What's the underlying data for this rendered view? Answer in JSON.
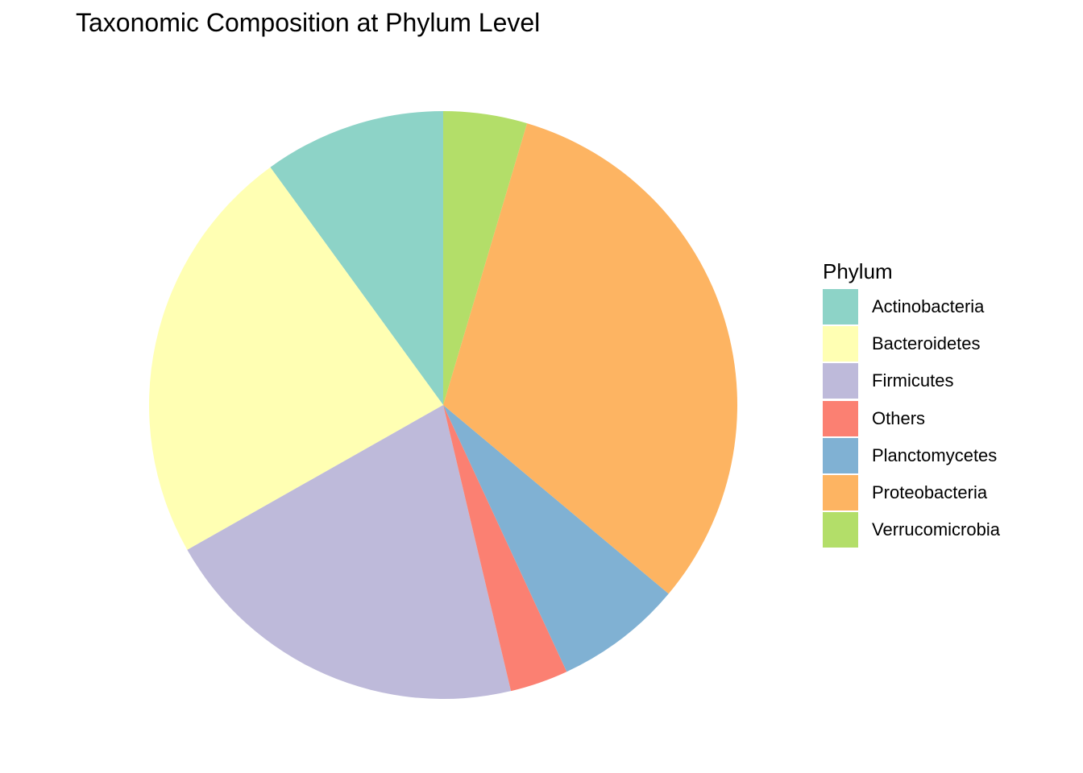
{
  "chart_data": {
    "type": "pie",
    "title": "Taxonomic Composition at Phylum Level",
    "legend_title": "Phylum",
    "legend_position": "right",
    "slices": [
      {
        "label": "Actinobacteria",
        "value": 10.0,
        "color": "#8DD3C7"
      },
      {
        "label": "Bacteroidetes",
        "value": 23.2,
        "color": "#FFFFB3"
      },
      {
        "label": "Firmicutes",
        "value": 20.5,
        "color": "#BEBADA"
      },
      {
        "label": "Others",
        "value": 3.2,
        "color": "#FB8072"
      },
      {
        "label": "Planctomycetes",
        "value": 7.0,
        "color": "#80B1D3"
      },
      {
        "label": "Proteobacteria",
        "value": 31.5,
        "color": "#FDB462"
      },
      {
        "label": "Verrucomicrobia",
        "value": 4.6,
        "color": "#B3DE69"
      }
    ]
  }
}
